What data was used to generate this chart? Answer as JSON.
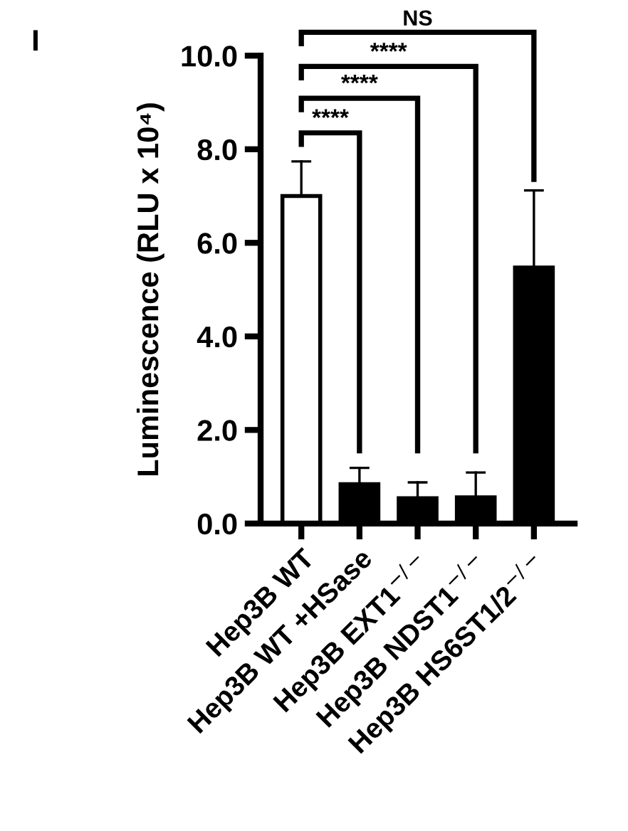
{
  "chart_data": {
    "type": "bar",
    "title": "I",
    "ylabel": "Luminescence (RLU x 10⁴)",
    "categories": [
      "Hep3B WT",
      "Hep3B WT +HSase",
      "Hep3B EXT1$^{−/−}$",
      "Hep3B NDST1$^{−/−}$",
      "Hep3B HS6ST1/2$^{−/−}$"
    ],
    "values": [
      7.0,
      0.84,
      0.54,
      0.56,
      5.47
    ],
    "colors": [
      "#ffffff",
      "#000000",
      "#000000",
      "#000000",
      "#000000"
    ],
    "errors": [
      [
        7.0,
        7.74
      ],
      [
        0.84,
        1.19
      ],
      [
        0.54,
        0.88
      ],
      [
        0.56,
        1.09
      ],
      [
        5.47,
        7.12
      ]
    ],
    "ylim": [
      0,
      10
    ],
    "yticks": [
      {
        "value": 0,
        "label": "0.0"
      },
      {
        "value": 2,
        "label": "2.0"
      },
      {
        "value": 4,
        "label": "4.0"
      },
      {
        "value": 6,
        "label": "6.0"
      },
      {
        "value": 8,
        "label": "8.0"
      },
      {
        "value": 10,
        "label": "10.0"
      }
    ],
    "annotations": [
      "****",
      "****",
      "****",
      "NS"
    ],
    "grid": false
  }
}
